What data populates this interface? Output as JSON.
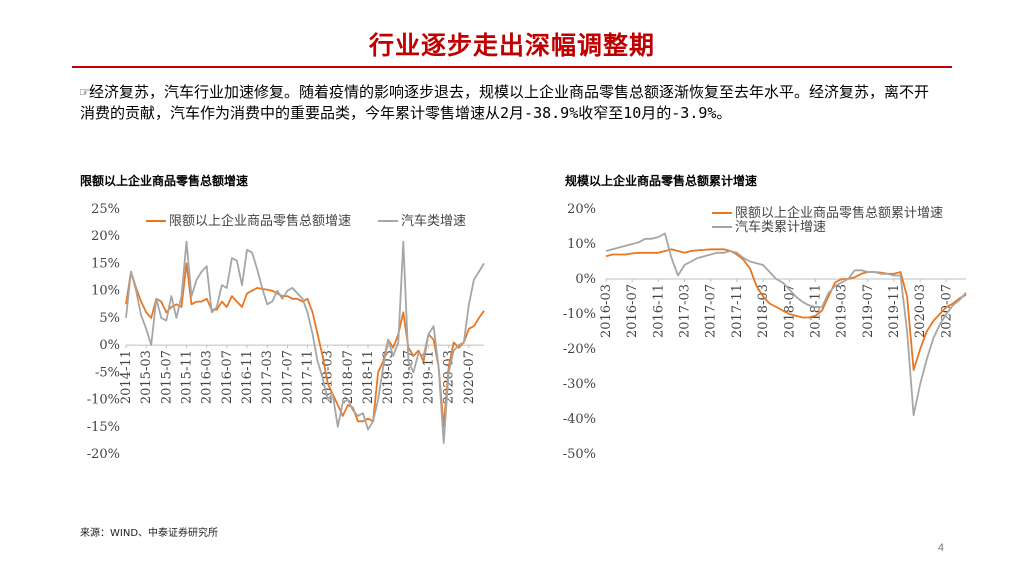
{
  "page": {
    "title": "行业逐步走出深幅调整期",
    "body": "☞经济复苏，汽车行业加速修复。随着疫情的影响逐步退去，规模以上企业商品零售总额逐渐恢复至去年水平。经济复苏，离不开消费的贡献，汽车作为消费中的重要品类，今年累计零售增速从2月-38.9%收窄至10月的-3.9%。",
    "source": "来源：WIND、中泰证券研究所",
    "page_number": "4",
    "colors": {
      "accent": "#c00000",
      "series_orange": "#e87722",
      "series_gray": "#a6a6a6"
    }
  },
  "chart_data": [
    {
      "type": "line",
      "title": "限额以上企业商品零售总额增速",
      "ylim": [
        -20,
        25
      ],
      "yticks": [
        25,
        20,
        15,
        10,
        5,
        0,
        -5,
        -10,
        -15,
        -20
      ],
      "ytick_labels": [
        "25%",
        "20%",
        "15%",
        "10%",
        "5%",
        "0%",
        "-5%",
        "-10%",
        "-15%",
        "-20%"
      ],
      "x": [
        "2014-11",
        "2014-12",
        "2015-01",
        "2015-02",
        "2015-03",
        "2015-04",
        "2015-05",
        "2015-06",
        "2015-07",
        "2015-08",
        "2015-09",
        "2015-10",
        "2015-11",
        "2015-12",
        "2016-01",
        "2016-02",
        "2016-03",
        "2016-04",
        "2016-05",
        "2016-06",
        "2016-07",
        "2016-08",
        "2016-09",
        "2016-10",
        "2016-11",
        "2016-12",
        "2017-01",
        "2017-02",
        "2017-03",
        "2017-04",
        "2017-05",
        "2017-06",
        "2017-07",
        "2017-08",
        "2017-09",
        "2017-10",
        "2017-11",
        "2017-12",
        "2018-01",
        "2018-02",
        "2018-03",
        "2018-04",
        "2018-05",
        "2018-06",
        "2018-07",
        "2018-08",
        "2018-09",
        "2018-10",
        "2018-11",
        "2018-12",
        "2019-01",
        "2019-02",
        "2019-03",
        "2019-04",
        "2019-05",
        "2019-06",
        "2019-07",
        "2019-08",
        "2019-09",
        "2019-10",
        "2019-11",
        "2019-12",
        "2020-01",
        "2020-02",
        "2020-03",
        "2020-04",
        "2020-05",
        "2020-06",
        "2020-07",
        "2020-08",
        "2020-09",
        "2020-10"
      ],
      "xtick_labels": [
        "2014-11",
        "2015-03",
        "2015-07",
        "2015-11",
        "2016-03",
        "2016-07",
        "2016-11",
        "2017-03",
        "2017-07",
        "2017-11",
        "2018-03",
        "2018-07",
        "2018-11",
        "2019-03",
        "2019-07",
        "2019-11",
        "2020-03",
        "2020-07"
      ],
      "series": [
        {
          "name": "限额以上企业商品零售总额增速",
          "color": "#e87722",
          "values": [
            7.5,
            13.5,
            10.5,
            8.0,
            6.0,
            5.0,
            8.5,
            8.0,
            6.0,
            7.0,
            7.5,
            7.0,
            15.0,
            7.5,
            8.0,
            8.0,
            8.5,
            6.5,
            6.5,
            8.0,
            7.0,
            9.0,
            8.0,
            7.0,
            9.5,
            10.0,
            10.5,
            10.3,
            10.2,
            10.0,
            9.5,
            9.0,
            9.0,
            8.5,
            8.5,
            8.0,
            8.5,
            6.0,
            2.0,
            -2.0,
            -7.0,
            -9.0,
            -11.0,
            -13.0,
            -11.0,
            -11.5,
            -14.0,
            -14.0,
            -13.5,
            -14.0,
            -5.0,
            -3.0,
            1.0,
            -0.5,
            2.0,
            6.0,
            -0.5,
            -2.0,
            -1.0,
            -3.0,
            2.0,
            1.0,
            -4.0,
            -15.0,
            -4.0,
            0.5,
            -0.5,
            0.5,
            3.0,
            3.5,
            5.0,
            6.3
          ]
        },
        {
          "name": "汽车类增速",
          "color": "#a6a6a6",
          "values": [
            5.0,
            13.5,
            10.0,
            5.5,
            3.0,
            0.0,
            8.5,
            5.0,
            4.5,
            9.0,
            5.0,
            9.0,
            19.0,
            9.0,
            12.0,
            13.5,
            14.5,
            6.0,
            7.0,
            11.0,
            10.5,
            16.0,
            15.5,
            11.0,
            17.5,
            17.0,
            14.0,
            10.5,
            7.5,
            8.0,
            10.0,
            8.5,
            10.0,
            10.5,
            9.5,
            8.5,
            6.0,
            2.0,
            -3.0,
            -6.0,
            -10.0,
            -9.0,
            -15.0,
            -10.5,
            -10.0,
            -12.0,
            -13.0,
            -12.5,
            -15.5,
            -14.0,
            -10.0,
            -4.0,
            1.0,
            -2.0,
            0.5,
            19.0,
            -3.0,
            -5.0,
            -1.5,
            -2.0,
            2.0,
            3.5,
            -4.0,
            -18.0,
            -5.0,
            -1.0,
            0.0,
            0.5,
            7.5,
            12.0,
            13.5,
            15.0
          ]
        }
      ]
    },
    {
      "type": "line",
      "title": "规模以上企业商品零售总额累计增速",
      "ylim": [
        -50,
        20
      ],
      "yticks": [
        20,
        10,
        0,
        -10,
        -20,
        -30,
        -40,
        -50
      ],
      "ytick_labels": [
        "20%",
        "10%",
        "0%",
        "-10%",
        "-20%",
        "-30%",
        "-40%",
        "-50%"
      ],
      "x": [
        "2016-03",
        "2016-04",
        "2016-05",
        "2016-06",
        "2016-07",
        "2016-08",
        "2016-09",
        "2016-10",
        "2016-11",
        "2016-12",
        "2017-01",
        "2017-02",
        "2017-03",
        "2017-04",
        "2017-05",
        "2017-06",
        "2017-07",
        "2017-08",
        "2017-09",
        "2017-10",
        "2017-11",
        "2017-12",
        "2018-01",
        "2018-02",
        "2018-03",
        "2018-04",
        "2018-05",
        "2018-06",
        "2018-07",
        "2018-08",
        "2018-09",
        "2018-10",
        "2018-11",
        "2018-12",
        "2019-01",
        "2019-02",
        "2019-03",
        "2019-04",
        "2019-05",
        "2019-06",
        "2019-07",
        "2019-08",
        "2019-09",
        "2019-10",
        "2019-11",
        "2019-12",
        "2020-01",
        "2020-02",
        "2020-03",
        "2020-04",
        "2020-05",
        "2020-06",
        "2020-07",
        "2020-08",
        "2020-09",
        "2020-10"
      ],
      "xtick_labels": [
        "2016-03",
        "2016-07",
        "2016-11",
        "2017-03",
        "2017-07",
        "2017-11",
        "2018-03",
        "2018-07",
        "2018-11",
        "2019-03",
        "2019-07",
        "2019-11",
        "2020-03",
        "2020-07"
      ],
      "series": [
        {
          "name": "限额以上企业商品零售总额累计增速",
          "color": "#e87722",
          "values": [
            6.5,
            7.0,
            7.0,
            7.0,
            7.3,
            7.5,
            7.5,
            7.5,
            7.5,
            8.0,
            8.5,
            8.0,
            7.5,
            8.0,
            8.2,
            8.3,
            8.5,
            8.5,
            8.5,
            8.0,
            7.0,
            5.5,
            3.0,
            -2.0,
            -5.0,
            -7.0,
            -8.0,
            -9.0,
            -10.0,
            -10.5,
            -11.0,
            -11.0,
            -10.5,
            -9.0,
            -5.0,
            -1.0,
            0.0,
            0.0,
            0.5,
            1.5,
            2.0,
            2.0,
            1.8,
            1.5,
            1.5,
            2.0,
            -5.0,
            -26.0,
            -20.0,
            -15.0,
            -12.0,
            -10.0,
            -8.0,
            -7.0,
            -5.5,
            -4.5
          ]
        },
        {
          "name": "汽车类累计增速",
          "color": "#a6a6a6",
          "values": [
            8.0,
            8.5,
            9.0,
            9.5,
            10.0,
            10.5,
            11.5,
            11.5,
            12.0,
            13.0,
            6.0,
            1.0,
            4.0,
            5.0,
            6.0,
            6.5,
            7.0,
            7.5,
            7.5,
            8.0,
            7.5,
            6.0,
            5.0,
            4.5,
            4.0,
            2.0,
            0.0,
            -1.0,
            -3.0,
            -5.0,
            -6.5,
            -7.5,
            -8.0,
            -8.0,
            -4.0,
            -2.0,
            -1.0,
            0.0,
            2.5,
            2.5,
            2.0,
            2.0,
            1.5,
            1.5,
            1.0,
            1.0,
            -15.0,
            -38.9,
            -30.0,
            -23.0,
            -17.0,
            -13.0,
            -10.0,
            -7.5,
            -6.0,
            -3.9
          ]
        }
      ]
    }
  ]
}
